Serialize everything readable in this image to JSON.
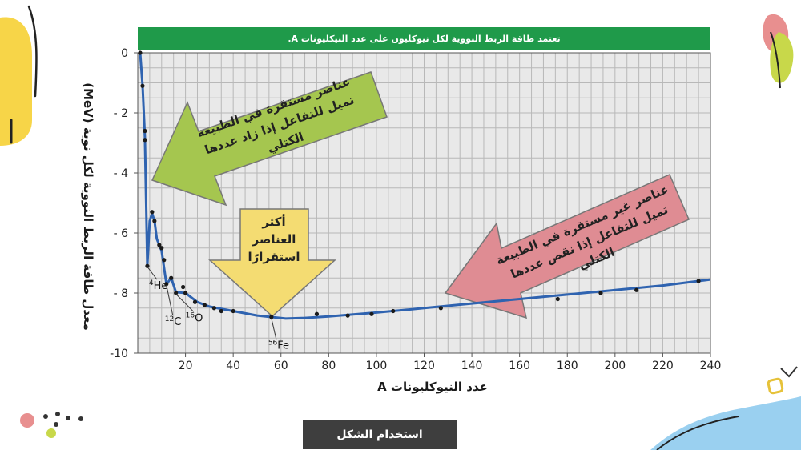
{
  "chart_data": {
    "type": "scatter",
    "title": "تعتمد طاقة الربط النووية لكل نيوكليون على عدد النيكليونات A.",
    "xlabel": "عدد النيوكليونات A",
    "ylabel": "معدل طاقة الربط النووية لكل نوية (MeV)",
    "xlim": [
      0,
      240
    ],
    "ylim": [
      -10,
      0
    ],
    "x_ticks": [
      20,
      40,
      60,
      80,
      100,
      120,
      140,
      160,
      180,
      200,
      220,
      240
    ],
    "y_ticks": [
      0,
      -2,
      -4,
      -6,
      -8,
      -10
    ],
    "x_tick_labels": [
      "20",
      "40",
      "60",
      "80",
      "100",
      "120",
      "140",
      "160",
      "180",
      "200",
      "220",
      "240"
    ],
    "y_tick_labels": [
      "0",
      "- 2",
      "- 4",
      "- 6",
      "- 8",
      "-10"
    ],
    "grid": true,
    "points": {
      "x": [
        1,
        2,
        3,
        3,
        4,
        6,
        7,
        9,
        10,
        11,
        12,
        14,
        16,
        19,
        20,
        24,
        28,
        32,
        35,
        40,
        56,
        75,
        88,
        98,
        107,
        127,
        176,
        194,
        209,
        235
      ],
      "y": [
        0,
        -1.1,
        -2.6,
        -2.9,
        -7.1,
        -5.3,
        -5.6,
        -6.4,
        -6.5,
        -6.9,
        -7.7,
        -7.5,
        -8.0,
        -7.8,
        -8.0,
        -8.3,
        -8.4,
        -8.5,
        -8.6,
        -8.6,
        -8.8,
        -8.7,
        -8.75,
        -8.7,
        -8.6,
        -8.5,
        -8.2,
        -8.0,
        -7.9,
        -7.6
      ]
    },
    "curve": {
      "x": [
        1,
        2,
        3,
        4,
        5,
        6,
        7,
        8,
        10,
        12,
        14,
        16,
        20,
        25,
        30,
        40,
        50,
        56,
        62,
        70,
        80,
        100,
        120,
        140,
        160,
        180,
        200,
        220,
        240
      ],
      "y": [
        0,
        -1.1,
        -2.8,
        -7.1,
        -5.6,
        -5.35,
        -5.6,
        -6.2,
        -6.6,
        -7.7,
        -7.5,
        -7.97,
        -8.0,
        -8.3,
        -8.45,
        -8.6,
        -8.75,
        -8.8,
        -8.85,
        -8.83,
        -8.78,
        -8.65,
        -8.5,
        -8.35,
        -8.2,
        -8.05,
        -7.9,
        -7.75,
        -7.55
      ]
    },
    "annotations": [
      {
        "text": "4He",
        "x": 4,
        "y": -7.07
      },
      {
        "text": "12C",
        "x": 12,
        "y": -7.68
      },
      {
        "text": "16O",
        "x": 16,
        "y": -7.98
      },
      {
        "text": "56Fe",
        "x": 56,
        "y": -8.79
      }
    ]
  },
  "arrows": {
    "green": "عناصر مستقرة في الطبيعة تميل للتفاعل إذا زاد عددها الكتلي",
    "yellow": "أكثر العناصر استقرارًا",
    "pink": "عناصر غير مستقرة في الطبيعة تميل للتفاعل إذا نقص عددها الكتلي"
  },
  "caption": "استخدام الشكل",
  "colors": {
    "banner": "#1f9a4a",
    "curve": "#2f63b0",
    "grid": "#b8b8b8",
    "plot_bg": "#e9e9e9",
    "green_arrow": "#a5c64f",
    "yellow_arrow": "#f4dc72",
    "pink_arrow": "#df8c93"
  }
}
